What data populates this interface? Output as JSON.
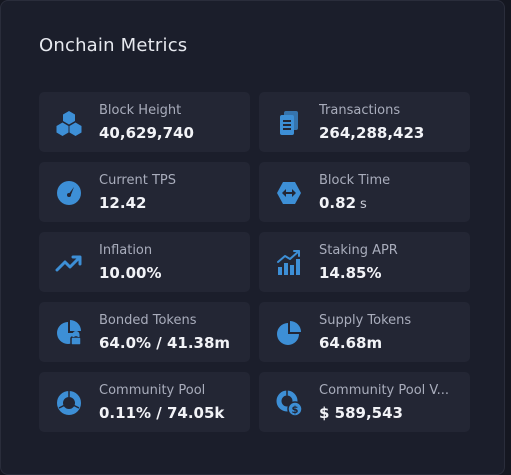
{
  "title": "Onchain Metrics",
  "accent": "#3d8fd6",
  "metrics": [
    {
      "label": "Block Height",
      "value": "40,629,740",
      "icon": "cubes-icon"
    },
    {
      "label": "Transactions",
      "value": "264,288,423",
      "icon": "documents-icon"
    },
    {
      "label": "Current TPS",
      "value": "12.42",
      "icon": "gauge-icon"
    },
    {
      "label": "Block Time",
      "value": "0.82",
      "unit": "s",
      "icon": "arrows-horizontal-icon"
    },
    {
      "label": "Inflation",
      "value": "10.00%",
      "icon": "trending-up-icon"
    },
    {
      "label": "Staking APR",
      "value": "14.85%",
      "icon": "bar-growth-icon"
    },
    {
      "label": "Bonded Tokens",
      "value": "64.0% / 41.38m",
      "icon": "pie-lock-icon"
    },
    {
      "label": "Supply Tokens",
      "value": "64.68m",
      "icon": "pie-chart-icon"
    },
    {
      "label": "Community Pool",
      "value": "0.11% / 74.05k",
      "icon": "donut-icon"
    },
    {
      "label": "Community Pool V...",
      "value": "$ 589,543",
      "icon": "donut-dollar-icon"
    }
  ]
}
